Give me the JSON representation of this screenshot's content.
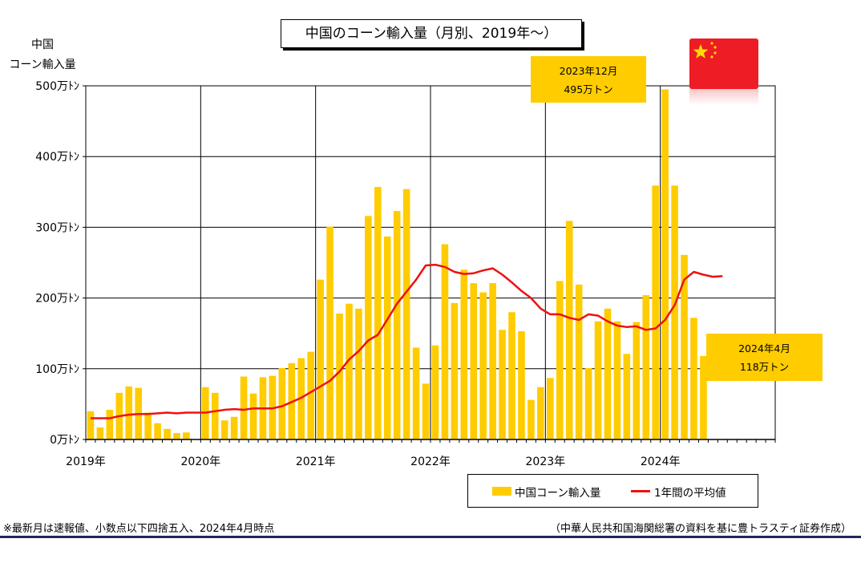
{
  "title": "中国のコーン輸入量（月別、2019年～）",
  "y_axis_title": [
    "中国",
    "コーン輸入量"
  ],
  "callouts": [
    {
      "line1": "2023年12月",
      "line2": "495万トン"
    },
    {
      "line1": "2024年4月",
      "line2": "118万トン"
    }
  ],
  "legend": {
    "bar": "中国コーン輸入量",
    "line": "1年間の平均値"
  },
  "notes": {
    "left": "※最新月は速報値、小数点以下四捨五入、2024年4月時点",
    "right": "（中華人民共和国海関総署の資料を基に豊トラスティ証券作成）"
  },
  "colors": {
    "bar": "#FFCC00",
    "line": "#EE1111",
    "flag": "#EE1C25",
    "flag_star": "#FFDE00",
    "rule": "#1C2B5E"
  },
  "flag_icon": "china-flag-icon",
  "chart_data": {
    "type": "bar",
    "y_unit": "万トン",
    "ylim": [
      0,
      500
    ],
    "yticks": [
      0,
      100,
      200,
      300,
      400,
      500
    ],
    "ytick_labels": [
      "0万ﾄﾝ",
      "100万ﾄﾝ",
      "200万ﾄﾝ",
      "300万ﾄﾝ",
      "400万ﾄﾝ",
      "500万ﾄﾝ"
    ],
    "xtick_labels": [
      "2019年",
      "2020年",
      "2021年",
      "2022年",
      "2023年",
      "2024年"
    ],
    "months_total": 72,
    "grid": true,
    "legend_position": "bottom-right",
    "series": [
      {
        "name": "中国コーン輸入量",
        "type": "bar",
        "values": [
          40,
          17,
          42,
          66,
          75,
          73,
          38,
          23,
          15,
          9,
          10,
          0,
          74,
          66,
          27,
          32,
          89,
          65,
          88,
          90,
          101,
          108,
          115,
          124,
          226,
          301,
          178,
          192,
          185,
          316,
          357,
          287,
          323,
          354,
          130,
          79,
          133,
          276,
          193,
          240,
          221,
          208,
          221,
          155,
          180,
          153,
          56,
          74,
          87,
          224,
          309,
          219,
          101,
          167,
          185,
          167,
          121,
          166,
          204,
          359,
          495,
          359,
          261,
          172,
          118
        ]
      },
      {
        "name": "1年間の平均値",
        "type": "line",
        "values": [
          30,
          30,
          30,
          33,
          35,
          36,
          36,
          37,
          38,
          37,
          38,
          38,
          38,
          40,
          42,
          43,
          42,
          44,
          44,
          44,
          47,
          53,
          59,
          67,
          75,
          83,
          96,
          113,
          125,
          140,
          148,
          170,
          192,
          209,
          226,
          246,
          247,
          244,
          237,
          234,
          235,
          239,
          242,
          233,
          222,
          210,
          200,
          185,
          177,
          177,
          172,
          169,
          177,
          175,
          167,
          161,
          159,
          160,
          155,
          157,
          169,
          190,
          226,
          237,
          233,
          230,
          231
        ]
      }
    ]
  }
}
